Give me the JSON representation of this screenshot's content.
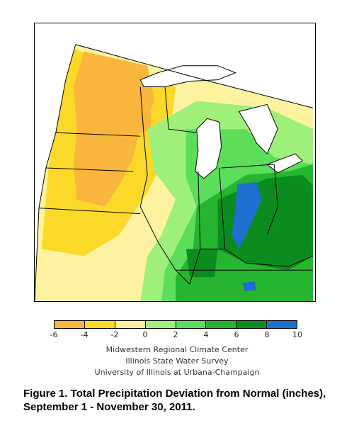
{
  "legend": {
    "ticks": [
      "-6",
      "-4",
      "-2",
      "0",
      "2",
      "4",
      "6",
      "8",
      "10"
    ],
    "colors": [
      "#f9b53c",
      "#fbd928",
      "#fdf2a0",
      "#9ef07a",
      "#5cde5a",
      "#26b52e",
      "#0b8c1e",
      "#1e6fd0"
    ]
  },
  "credits": {
    "line1": "Midwestern Regional Climate Center",
    "line2": "Illinois State Water Survey",
    "line3": "University of Illinois at Urbana-Champaign"
  },
  "caption": {
    "line1": "Figure 1. Total Precipitation Deviation from Normal (inches),",
    "line2": "September 1 - November 30, 2011."
  },
  "map": {
    "lake_color": "#ffffff",
    "boundary_color": "#000000"
  }
}
